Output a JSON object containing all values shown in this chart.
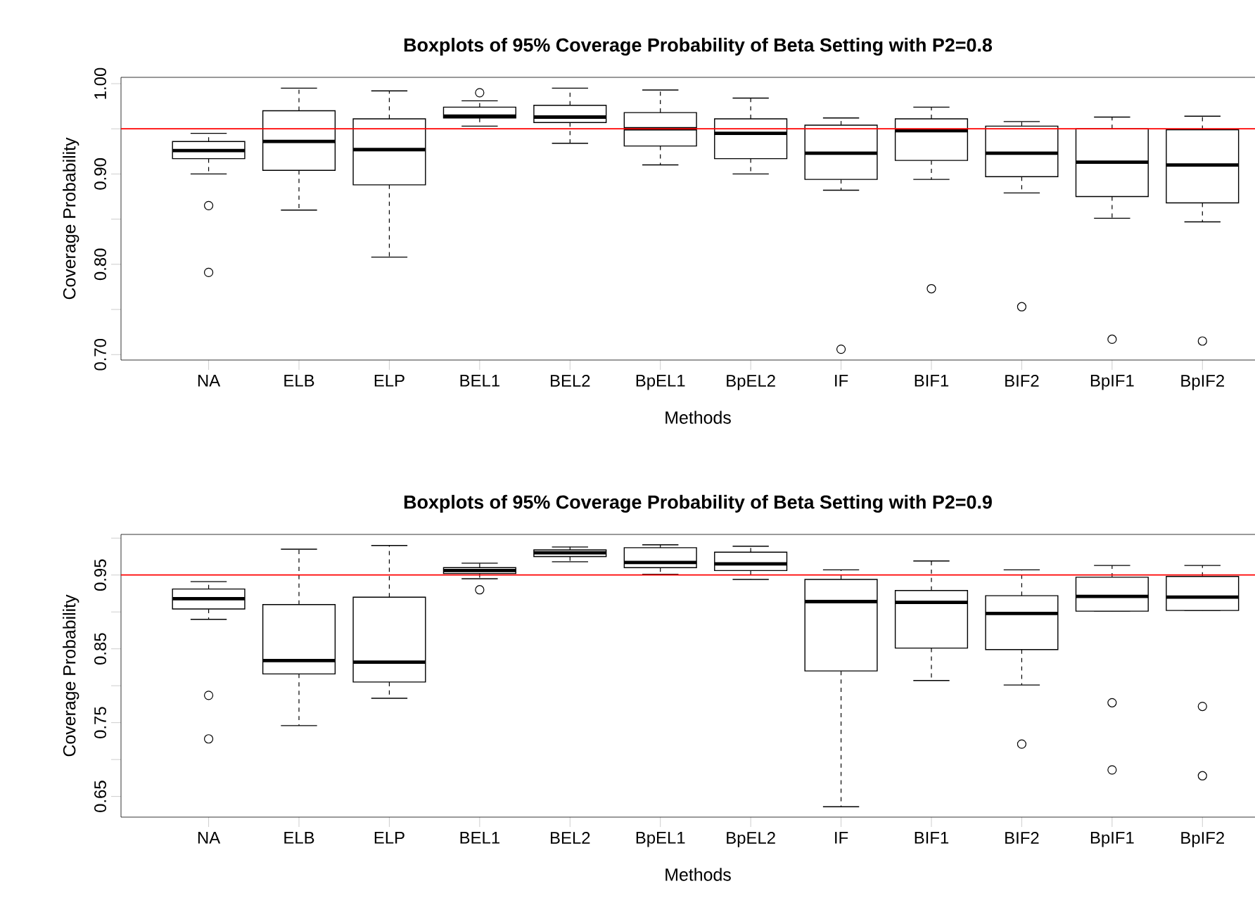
{
  "chart_data": [
    {
      "type": "box",
      "title": "Boxplots of 95% Coverage Probability of Beta Setting with P2=0.8",
      "xlabel": "Methods",
      "ylabel": "Coverage Probability",
      "categories": [
        "NA",
        "ELB",
        "ELP",
        "BEL1",
        "BEL2",
        "BpEL1",
        "BpEL2",
        "IF",
        "BIF1",
        "BIF2",
        "BpIF1",
        "BpIF2"
      ],
      "boxes": [
        {
          "low": 0.9,
          "q1": 0.917,
          "median": 0.926,
          "q3": 0.936,
          "high": 0.945,
          "outliers": [
            0.865,
            0.791
          ]
        },
        {
          "low": 0.86,
          "q1": 0.904,
          "median": 0.936,
          "q3": 0.97,
          "high": 0.995
        },
        {
          "low": 0.808,
          "q1": 0.888,
          "median": 0.927,
          "q3": 0.961,
          "high": 0.992
        },
        {
          "low": 0.953,
          "q1": 0.962,
          "median": 0.964,
          "q3": 0.974,
          "high": 0.981,
          "outliers": [
            0.99
          ]
        },
        {
          "low": 0.934,
          "q1": 0.957,
          "median": 0.963,
          "q3": 0.976,
          "high": 0.995
        },
        {
          "low": 0.91,
          "q1": 0.931,
          "median": 0.95,
          "q3": 0.968,
          "high": 0.993
        },
        {
          "low": 0.9,
          "q1": 0.917,
          "median": 0.945,
          "q3": 0.961,
          "high": 0.984
        },
        {
          "low": 0.882,
          "q1": 0.894,
          "median": 0.923,
          "q3": 0.954,
          "high": 0.962,
          "outliers": [
            0.706
          ]
        },
        {
          "low": 0.894,
          "q1": 0.915,
          "median": 0.948,
          "q3": 0.961,
          "high": 0.974,
          "outliers": [
            0.773
          ]
        },
        {
          "low": 0.879,
          "q1": 0.897,
          "median": 0.923,
          "q3": 0.953,
          "high": 0.958,
          "outliers": [
            0.753
          ]
        },
        {
          "low": 0.851,
          "q1": 0.875,
          "median": 0.913,
          "q3": 0.95,
          "high": 0.963,
          "outliers": [
            0.717
          ]
        },
        {
          "low": 0.847,
          "q1": 0.868,
          "median": 0.91,
          "q3": 0.949,
          "high": 0.964,
          "outliers": [
            0.715
          ]
        }
      ],
      "ylim": [
        0.694,
        1.007
      ],
      "yticks": [
        {
          "value": 0.7,
          "label": "0.70"
        },
        {
          "value": 0.75,
          "label": null
        },
        {
          "value": 0.8,
          "label": "0.80"
        },
        {
          "value": 0.85,
          "label": null
        },
        {
          "value": 0.9,
          "label": "0.90"
        },
        {
          "value": 0.95,
          "label": null
        },
        {
          "value": 1.0,
          "label": "1.00"
        }
      ],
      "ref_lines": [
        {
          "axis": "y",
          "value": 0.95,
          "color": "#ff0000"
        }
      ]
    },
    {
      "type": "box",
      "title": "Boxplots of 95% Coverage Probability of Beta Setting with P2=0.9",
      "xlabel": "Methods",
      "ylabel": "Coverage Probability",
      "categories": [
        "NA",
        "ELB",
        "ELP",
        "BEL1",
        "BEL2",
        "BpEL1",
        "BpEL2",
        "IF",
        "BIF1",
        "BIF2",
        "BpIF1",
        "BpIF2"
      ],
      "boxes": [
        {
          "low": 0.89,
          "q1": 0.904,
          "median": 0.918,
          "q3": 0.931,
          "high": 0.941,
          "outliers": [
            0.787,
            0.728
          ]
        },
        {
          "low": 0.746,
          "q1": 0.816,
          "median": 0.834,
          "q3": 0.91,
          "high": 0.985
        },
        {
          "low": 0.783,
          "q1": 0.805,
          "median": 0.832,
          "q3": 0.92,
          "high": 0.99
        },
        {
          "low": 0.945,
          "q1": 0.952,
          "median": 0.956,
          "q3": 0.96,
          "high": 0.966,
          "outliers": [
            0.93
          ]
        },
        {
          "low": 0.968,
          "q1": 0.975,
          "median": 0.98,
          "q3": 0.984,
          "high": 0.988
        },
        {
          "low": 0.951,
          "q1": 0.96,
          "median": 0.967,
          "q3": 0.987,
          "high": 0.991
        },
        {
          "low": 0.944,
          "q1": 0.956,
          "median": 0.965,
          "q3": 0.981,
          "high": 0.989
        },
        {
          "low": 0.636,
          "q1": 0.82,
          "median": 0.914,
          "q3": 0.944,
          "high": 0.957
        },
        {
          "low": 0.807,
          "q1": 0.851,
          "median": 0.913,
          "q3": 0.929,
          "high": 0.969
        },
        {
          "low": 0.801,
          "q1": 0.849,
          "median": 0.898,
          "q3": 0.922,
          "high": 0.957,
          "outliers": [
            0.721
          ]
        },
        {
          "low": 0.901,
          "q1": 0.901,
          "median": 0.921,
          "q3": 0.947,
          "high": 0.963,
          "outliers": [
            0.777,
            0.686
          ]
        },
        {
          "low": 0.902,
          "q1": 0.902,
          "median": 0.92,
          "q3": 0.948,
          "high": 0.963,
          "outliers": [
            0.772,
            0.678
          ]
        }
      ],
      "ylim": [
        0.622,
        1.005
      ],
      "yticks": [
        {
          "value": 0.65,
          "label": "0.65"
        },
        {
          "value": 0.7,
          "label": null
        },
        {
          "value": 0.75,
          "label": "0.75"
        },
        {
          "value": 0.8,
          "label": null
        },
        {
          "value": 0.85,
          "label": "0.85"
        },
        {
          "value": 0.9,
          "label": null
        },
        {
          "value": 0.95,
          "label": "0.95"
        },
        {
          "value": 1.0,
          "label": null
        }
      ],
      "ref_lines": [
        {
          "axis": "y",
          "value": 0.95,
          "color": "#ff0000"
        }
      ]
    }
  ]
}
